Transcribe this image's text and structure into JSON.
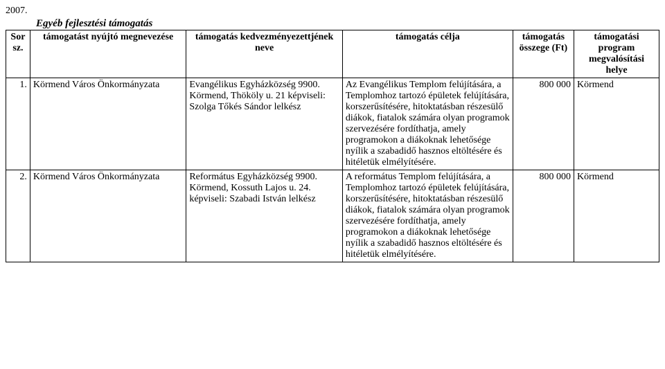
{
  "year": "2007.",
  "heading": "Egyéb fejlesztési támogatás",
  "columns": {
    "sor": "Sor sz.",
    "provider": "támogatást nyújtó megnevezése",
    "beneficiary": "támogatás kedvezményezettjének neve",
    "purpose": "támogatás célja",
    "amount": "támogatás összege (Ft)",
    "location": "támogatási program megvalósítási helye"
  },
  "rows": [
    {
      "num": "1.",
      "provider": "Körmend Város Önkormányzata",
      "beneficiary": "Evangélikus Egyházközség 9900. Körmend, Thököly u. 21 képviseli: Szolga Tőkés Sándor lelkész",
      "purpose": "Az Evangélikus Templom felújítására, a Templomhoz tartozó épületek felújítására, korszerűsítésére, hitoktatásban részesülő diákok, fiatalok számára olyan programok szervezésére fordíthatja, amely programokon a diákoknak lehetősége nyílik a szabadidő hasznos eltöltésére és hitéletük elmélyítésére.",
      "amount": "800 000",
      "location": "Körmend"
    },
    {
      "num": "2.",
      "provider": "Körmend Város Önkormányzata",
      "beneficiary": "Református Egyházközség 9900. Körmend, Kossuth Lajos u. 24. képviseli: Szabadi István lelkész",
      "purpose": "A református Templom felújítására, a Templomhoz tartozó épületek felújítására, korszerűsítésére, hitoktatásban részesülő diákok, fiatalok számára olyan programok szervezésére fordíthatja, amely programokon a diákoknak lehetősége nyílik a szabadidő hasznos eltöltésére és hitéletük elmélyítésére.",
      "amount": "800 000",
      "location": "Körmend"
    }
  ]
}
